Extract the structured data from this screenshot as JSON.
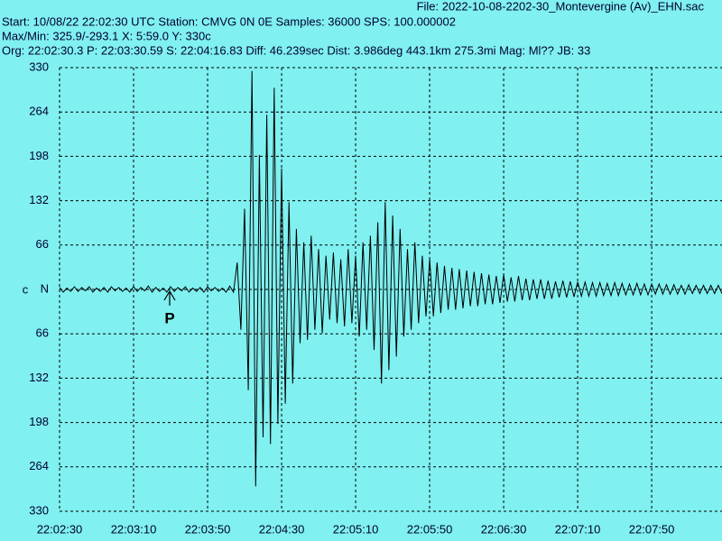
{
  "header": {
    "file": "File: 2022-10-08-2202-30_Montevergine (Av)_EHN.sac",
    "line1": "Start: 10/08/22 22:02:30 UTC Station: CMVG 0N 0E Samples: 36000  SPS: 100.000002",
    "line2": "Max/Min: 325.9/-293.1 X: 5:59.0 Y: 330c",
    "line3": "Org: 22:02:30.3 P: 22:03:30.59 S: 22:04:16.83 Diff: 46.239sec Dist: 3.986deg 443.1km 275.3mi  Mag: Ml?? JB: 33"
  },
  "chart_data": {
    "type": "line",
    "color": "#000000",
    "grid": true,
    "y_label": "c",
    "annotations": [
      {
        "text": "P",
        "x": 59.5
      }
    ],
    "xlim": [
      0,
      358
    ],
    "ylim": [
      -330,
      330
    ],
    "xticks": [
      {
        "value": 0,
        "label": "22:02:30"
      },
      {
        "value": 40,
        "label": "22:03:10"
      },
      {
        "value": 80,
        "label": "22:03:50"
      },
      {
        "value": 120,
        "label": "22:04:30"
      },
      {
        "value": 160,
        "label": "22:05:10"
      },
      {
        "value": 200,
        "label": "22:05:50"
      },
      {
        "value": 240,
        "label": "22:06:30"
      },
      {
        "value": 280,
        "label": "22:07:10"
      },
      {
        "value": 320,
        "label": "22:07:50"
      }
    ],
    "yticks": [
      330,
      264,
      198,
      132,
      66,
      {
        "value": 0,
        "label": "N"
      },
      {
        "value": -66,
        "label": "66"
      },
      {
        "value": -132,
        "label": "132"
      },
      {
        "value": -198,
        "label": "198"
      },
      {
        "value": -264,
        "label": "264"
      },
      {
        "value": -330,
        "label": "330"
      }
    ],
    "x": [
      0,
      2,
      4,
      6,
      8,
      10,
      12,
      14,
      16,
      18,
      20,
      22,
      24,
      26,
      28,
      30,
      32,
      34,
      36,
      38,
      40,
      42,
      44,
      46,
      48,
      50,
      52,
      54,
      56,
      58,
      60,
      62,
      64,
      66,
      68,
      70,
      72,
      74,
      76,
      78,
      80,
      82,
      84,
      86,
      88,
      90,
      92,
      94,
      96,
      98,
      100,
      102,
      104,
      106,
      108,
      110,
      112,
      114,
      116,
      118,
      120,
      122,
      124,
      126,
      128,
      130,
      132,
      134,
      136,
      138,
      140,
      142,
      144,
      146,
      148,
      150,
      152,
      154,
      156,
      158,
      160,
      162,
      164,
      166,
      168,
      170,
      172,
      174,
      176,
      178,
      180,
      182,
      184,
      186,
      188,
      190,
      192,
      194,
      196,
      198,
      200,
      202,
      204,
      206,
      208,
      210,
      212,
      214,
      216,
      218,
      220,
      222,
      224,
      226,
      228,
      230,
      232,
      234,
      236,
      238,
      240,
      242,
      244,
      246,
      248,
      250,
      252,
      254,
      256,
      258,
      260,
      262,
      264,
      266,
      268,
      270,
      272,
      274,
      276,
      278,
      280,
      282,
      284,
      286,
      288,
      290,
      292,
      294,
      296,
      298,
      300,
      302,
      304,
      306,
      308,
      310,
      312,
      314,
      316,
      318,
      320,
      322,
      324,
      326,
      328,
      330,
      332,
      334,
      336,
      338,
      340,
      342,
      344,
      346,
      348,
      350,
      352,
      354,
      356,
      358
    ],
    "values": [
      3,
      -4,
      2,
      -3,
      4,
      -3,
      3,
      -2,
      4,
      -4,
      2,
      -3,
      3,
      -4,
      4,
      -2,
      3,
      -3,
      2,
      -4,
      4,
      -3,
      3,
      -2,
      5,
      -4,
      3,
      -3,
      2,
      -4,
      4,
      -3,
      3,
      -2,
      4,
      -4,
      2,
      -3,
      3,
      -4,
      4,
      -2,
      3,
      -3,
      2,
      -4,
      5,
      -4,
      40,
      -60,
      120,
      -150,
      325,
      -293,
      200,
      -220,
      260,
      -230,
      300,
      -200,
      180,
      -170,
      130,
      -140,
      90,
      -80,
      70,
      -75,
      80,
      -60,
      60,
      -65,
      50,
      -45,
      55,
      -50,
      45,
      -55,
      60,
      -50,
      50,
      -70,
      70,
      -60,
      80,
      -90,
      100,
      -140,
      130,
      -120,
      110,
      -100,
      90,
      -70,
      60,
      -60,
      70,
      -50,
      50,
      -40,
      45,
      -40,
      40,
      -35,
      35,
      -30,
      32,
      -30,
      30,
      -28,
      28,
      -25,
      26,
      -25,
      24,
      -22,
      22,
      -22,
      20,
      -20,
      22,
      -18,
      18,
      -18,
      20,
      -16,
      16,
      -16,
      15,
      -14,
      15,
      -14,
      13,
      -14,
      12,
      -12,
      13,
      -12,
      12,
      -11,
      11,
      -10,
      11,
      -10,
      10,
      -10,
      10,
      -9,
      9,
      -9,
      10,
      -9,
      9,
      -8,
      8,
      -8,
      9,
      -8,
      8,
      -8,
      8,
      -7,
      8,
      -7,
      7,
      -7,
      7,
      -7,
      6,
      -7,
      7,
      -6,
      6,
      -6,
      6,
      -6,
      6,
      -6,
      6,
      -6
    ]
  }
}
